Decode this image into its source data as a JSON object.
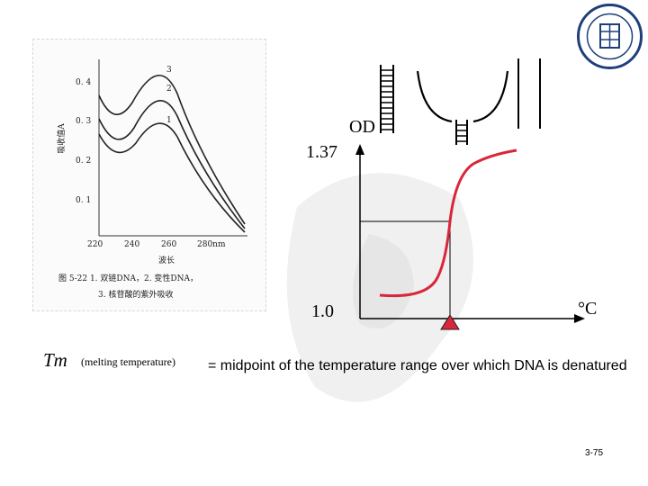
{
  "spectrum_figure": {
    "y_axis_label": "吸收值A",
    "y_ticks": [
      "0. 4",
      "0. 3",
      "0. 2",
      "0. 1"
    ],
    "x_ticks": [
      "220",
      "240",
      "260",
      "280nm"
    ],
    "x_axis_label": "波长",
    "curve_labels": [
      "3",
      "2",
      "1"
    ],
    "caption_line1": "图 5-22   1. 双链DNA，2. 变性DNA，",
    "caption_line2": "3. 核苷酸的紫外吸收"
  },
  "melting_curve": {
    "y_axis_label": "OD",
    "y_top_value": "1.37",
    "y_bottom_value": "1.0",
    "x_axis_label": "°C"
  },
  "tm": {
    "symbol": "Tm",
    "parenthetical": "(melting temperature)",
    "definition": "= midpoint of the temperature range over which DNA is denatured"
  },
  "page_number": "3-75",
  "colors": {
    "curve": "#d9263a",
    "marker": "#d9263a",
    "seal": "#1f3f7a"
  },
  "icons": [
    "university-seal-icon",
    "double-helix-icon",
    "unwinding-helix-icon",
    "separated-strands-icon",
    "partial-helix-icon",
    "tm-marker-icon"
  ]
}
